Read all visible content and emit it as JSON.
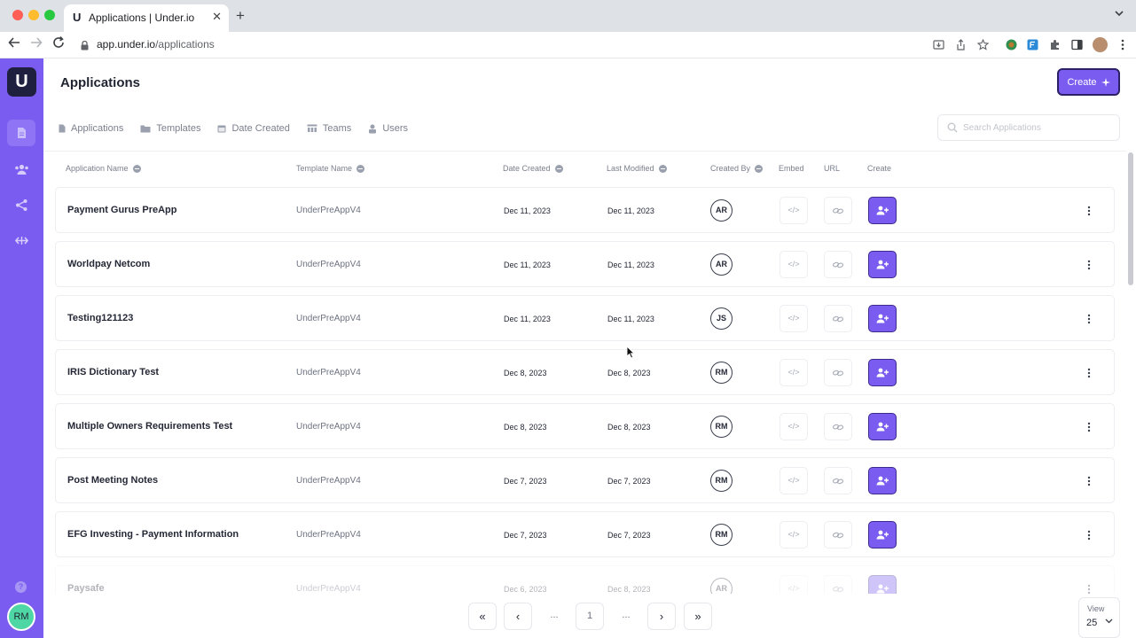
{
  "browser": {
    "tab_title": "Applications | Under.io",
    "tab_favicon": "U",
    "url_host": "app.under.io",
    "url_path": "/applications",
    "colors": {
      "tl_red": "#ff5f57",
      "tl_yellow": "#febc2e",
      "tl_green": "#28c840"
    }
  },
  "sidebar": {
    "logo": "U",
    "items": [
      {
        "icon": "document-icon",
        "active": true
      },
      {
        "icon": "users-icon",
        "active": false
      },
      {
        "icon": "share-icon",
        "active": false
      },
      {
        "icon": "arrows-horizontal-icon",
        "active": false
      }
    ],
    "help": "?",
    "user_initials": "RM",
    "colors": {
      "bg": "#7b5cf0",
      "avatar": "#4fd6a5"
    }
  },
  "header": {
    "title": "Applications",
    "create_label": "Create"
  },
  "filters": [
    {
      "label": "Applications",
      "icon": "document-icon"
    },
    {
      "label": "Templates",
      "icon": "folder-icon"
    },
    {
      "label": "Date Created",
      "icon": "calendar-icon"
    },
    {
      "label": "Teams",
      "icon": "team-icon"
    },
    {
      "label": "Users",
      "icon": "user-icon"
    }
  ],
  "search": {
    "placeholder": "Search Applications",
    "value": ""
  },
  "table": {
    "columns": {
      "name": "Application Name",
      "template": "Template Name",
      "created": "Date Created",
      "modified": "Last Modified",
      "created_by": "Created By",
      "embed": "Embed",
      "url": "URL",
      "create": "Create"
    },
    "rows": [
      {
        "name": "Payment Gurus PreApp",
        "template": "UnderPreAppV4",
        "created": "Dec 11, 2023",
        "modified": "Dec 11, 2023",
        "by": "AR"
      },
      {
        "name": "Worldpay Netcom",
        "template": "UnderPreAppV4",
        "created": "Dec 11, 2023",
        "modified": "Dec 11, 2023",
        "by": "AR"
      },
      {
        "name": "Testing121123",
        "template": "UnderPreAppV4",
        "created": "Dec 11, 2023",
        "modified": "Dec 11, 2023",
        "by": "JS"
      },
      {
        "name": "IRIS Dictionary Test",
        "template": "UnderPreAppV4",
        "created": "Dec 8, 2023",
        "modified": "Dec 8, 2023",
        "by": "RM"
      },
      {
        "name": "Multiple Owners Requirements Test",
        "template": "UnderPreAppV4",
        "created": "Dec 8, 2023",
        "modified": "Dec 8, 2023",
        "by": "RM"
      },
      {
        "name": "Post Meeting Notes",
        "template": "UnderPreAppV4",
        "created": "Dec 7, 2023",
        "modified": "Dec 7, 2023",
        "by": "RM"
      },
      {
        "name": "EFG Investing - Payment Information",
        "template": "UnderPreAppV4",
        "created": "Dec 7, 2023",
        "modified": "Dec 7, 2023",
        "by": "RM"
      },
      {
        "name": "Paysafe",
        "template": "UnderPreAppV4",
        "created": "Dec 6, 2023",
        "modified": "Dec 8, 2023",
        "by": "AR"
      }
    ],
    "embed_glyph": "</>"
  },
  "pagination": {
    "first": "«",
    "prev": "‹",
    "ellipsis_left": "...",
    "current": "1",
    "ellipsis_right": "...",
    "next": "›",
    "last": "»",
    "view_label": "View",
    "view_value": "25"
  },
  "accent_color": "#7b5cf0"
}
